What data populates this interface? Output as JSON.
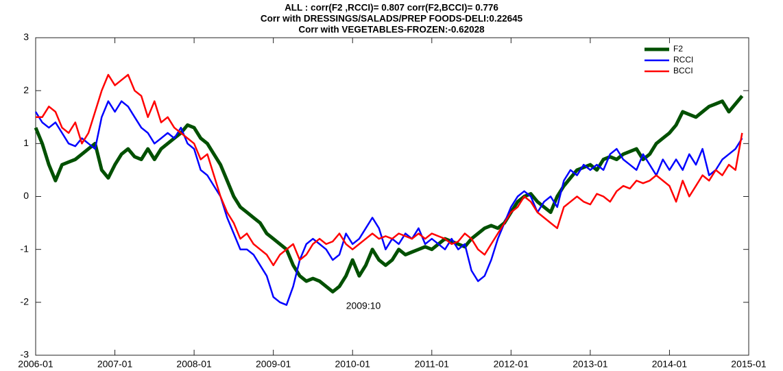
{
  "chart_data": {
    "type": "line",
    "title": "ALL : corr(F2 ,RCCI)=  0.807 corr(F2,BCCI)= 0.776",
    "subtitle": [
      "Corr with DRESSINGS/SALADS/PREP FOODS-DELI:0.22645",
      "Corr with VEGETABLES-FROZEN:-0.62028"
    ],
    "annotations": [
      {
        "text": "2009:10"
      }
    ],
    "x": [
      "2006-01",
      "2006-02",
      "2006-03",
      "2006-04",
      "2006-05",
      "2006-06",
      "2006-07",
      "2006-08",
      "2006-09",
      "2006-10",
      "2006-11",
      "2006-12",
      "2007-01",
      "2007-02",
      "2007-03",
      "2007-04",
      "2007-05",
      "2007-06",
      "2007-07",
      "2007-08",
      "2007-09",
      "2007-10",
      "2007-11",
      "2007-12",
      "2008-01",
      "2008-02",
      "2008-03",
      "2008-04",
      "2008-05",
      "2008-06",
      "2008-07",
      "2008-08",
      "2008-09",
      "2008-10",
      "2008-11",
      "2008-12",
      "2009-01",
      "2009-02",
      "2009-03",
      "2009-04",
      "2009-05",
      "2009-06",
      "2009-07",
      "2009-08",
      "2009-09",
      "2009-10",
      "2009-11",
      "2009-12",
      "2010-01",
      "2010-02",
      "2010-03",
      "2010-04",
      "2010-05",
      "2010-06",
      "2010-07",
      "2010-08",
      "2010-09",
      "2010-10",
      "2010-11",
      "2010-12",
      "2011-01",
      "2011-02",
      "2011-03",
      "2011-04",
      "2011-05",
      "2011-06",
      "2011-07",
      "2011-08",
      "2011-09",
      "2011-10",
      "2011-11",
      "2011-12",
      "2012-01",
      "2012-02",
      "2012-03",
      "2012-04",
      "2012-05",
      "2012-06",
      "2012-07",
      "2012-08",
      "2012-09",
      "2012-10",
      "2012-11",
      "2012-12",
      "2013-01",
      "2013-02",
      "2013-03",
      "2013-04",
      "2013-05",
      "2013-06",
      "2013-07",
      "2013-08",
      "2013-09",
      "2013-10",
      "2013-11",
      "2013-12",
      "2014-01",
      "2014-02",
      "2014-03",
      "2014-04",
      "2014-05",
      "2014-06",
      "2014-07",
      "2014-08",
      "2014-09",
      "2014-10",
      "2014-11",
      "2014-12"
    ],
    "series": [
      {
        "name": "F2",
        "color": "#005000",
        "width": 5,
        "values": [
          1.3,
          1.0,
          0.6,
          0.3,
          0.6,
          0.65,
          0.7,
          0.8,
          0.9,
          1.0,
          0.5,
          0.35,
          0.6,
          0.8,
          0.9,
          0.75,
          0.7,
          0.9,
          0.7,
          0.9,
          1.0,
          1.1,
          1.2,
          1.35,
          1.3,
          1.1,
          1.0,
          0.8,
          0.6,
          0.3,
          0.0,
          -0.2,
          -0.3,
          -0.4,
          -0.5,
          -0.7,
          -0.8,
          -0.9,
          -1.0,
          -1.3,
          -1.5,
          -1.6,
          -1.55,
          -1.6,
          -1.7,
          -1.8,
          -1.7,
          -1.5,
          -1.2,
          -1.5,
          -1.3,
          -1.0,
          -1.2,
          -1.3,
          -1.2,
          -1.0,
          -1.1,
          -1.05,
          -1.0,
          -0.95,
          -1.0,
          -0.9,
          -0.8,
          -0.85,
          -0.9,
          -0.95,
          -0.8,
          -0.7,
          -0.6,
          -0.55,
          -0.6,
          -0.5,
          -0.3,
          -0.1,
          0.0,
          0.05,
          -0.1,
          -0.2,
          -0.3,
          0.0,
          0.2,
          0.35,
          0.5,
          0.55,
          0.6,
          0.5,
          0.7,
          0.75,
          0.7,
          0.8,
          0.85,
          0.9,
          0.7,
          0.8,
          1.0,
          1.1,
          1.2,
          1.35,
          1.6,
          1.55,
          1.5,
          1.6,
          1.7,
          1.75,
          1.8,
          1.6,
          1.75,
          1.9
        ]
      },
      {
        "name": "RCCI",
        "color": "#0000ff",
        "width": 2.5,
        "values": [
          1.6,
          1.4,
          1.3,
          1.4,
          1.2,
          1.0,
          0.95,
          1.1,
          1.0,
          0.9,
          1.5,
          1.8,
          1.6,
          1.8,
          1.7,
          1.5,
          1.3,
          1.2,
          1.0,
          1.1,
          1.2,
          1.1,
          1.3,
          1.0,
          0.9,
          0.5,
          0.4,
          0.2,
          0.0,
          -0.4,
          -0.7,
          -1.0,
          -1.0,
          -1.1,
          -1.3,
          -1.5,
          -1.9,
          -2.0,
          -2.05,
          -1.7,
          -1.2,
          -0.9,
          -0.8,
          -0.9,
          -1.0,
          -1.2,
          -1.1,
          -0.7,
          -0.9,
          -0.8,
          -0.6,
          -0.4,
          -0.6,
          -1.0,
          -0.8,
          -0.9,
          -0.7,
          -0.8,
          -0.6,
          -0.9,
          -0.8,
          -0.9,
          -1.0,
          -0.8,
          -1.0,
          -0.9,
          -1.4,
          -1.6,
          -1.5,
          -1.2,
          -0.8,
          -0.5,
          -0.2,
          0.0,
          0.1,
          0.0,
          -0.3,
          -0.1,
          0.0,
          -0.2,
          0.3,
          0.5,
          0.4,
          0.6,
          0.5,
          0.6,
          0.5,
          0.8,
          0.9,
          0.7,
          0.6,
          0.5,
          0.8,
          0.6,
          0.4,
          0.7,
          0.5,
          0.7,
          0.5,
          0.8,
          0.6,
          0.9,
          0.4,
          0.5,
          0.7,
          0.8,
          0.9,
          1.1
        ]
      },
      {
        "name": "BCCI",
        "color": "#ff0000",
        "width": 2.5,
        "values": [
          1.5,
          1.5,
          1.7,
          1.6,
          1.3,
          1.2,
          1.4,
          1.0,
          1.2,
          1.6,
          2.0,
          2.3,
          2.1,
          2.2,
          2.3,
          2.0,
          1.9,
          1.5,
          1.8,
          1.4,
          1.5,
          1.3,
          1.2,
          1.1,
          1.0,
          0.7,
          0.8,
          0.4,
          0.0,
          -0.3,
          -0.5,
          -0.8,
          -0.7,
          -0.9,
          -1.0,
          -1.1,
          -1.3,
          -1.1,
          -1.0,
          -0.9,
          -1.2,
          -1.1,
          -0.9,
          -0.8,
          -0.9,
          -0.85,
          -0.7,
          -0.9,
          -1.0,
          -0.9,
          -0.8,
          -0.7,
          -0.8,
          -0.75,
          -0.8,
          -0.7,
          -0.75,
          -0.8,
          -0.7,
          -0.8,
          -0.7,
          -0.75,
          -0.8,
          -0.9,
          -0.85,
          -0.7,
          -0.8,
          -1.0,
          -1.1,
          -0.9,
          -0.7,
          -0.5,
          -0.3,
          -0.2,
          0.0,
          -0.1,
          -0.3,
          -0.4,
          -0.5,
          -0.6,
          -0.2,
          -0.1,
          0.0,
          -0.1,
          -0.15,
          0.05,
          0.0,
          -0.1,
          0.1,
          0.2,
          0.15,
          0.3,
          0.25,
          0.3,
          0.4,
          0.3,
          0.2,
          -0.1,
          0.3,
          0.0,
          0.2,
          0.4,
          0.3,
          0.5,
          0.4,
          0.6,
          0.5,
          1.2
        ]
      }
    ],
    "xlim": [
      "2006-01",
      "2015-01"
    ],
    "xticks": [
      "2006-01",
      "2007-01",
      "2008-01",
      "2009-01",
      "2010-01",
      "2011-01",
      "2012-01",
      "2013-01",
      "2014-01",
      "2015-01"
    ],
    "ylim": [
      -3,
      3
    ],
    "yticks": [
      -3,
      -2,
      -1,
      0,
      1,
      2,
      3
    ],
    "legend": "top-right",
    "grid": false
  }
}
